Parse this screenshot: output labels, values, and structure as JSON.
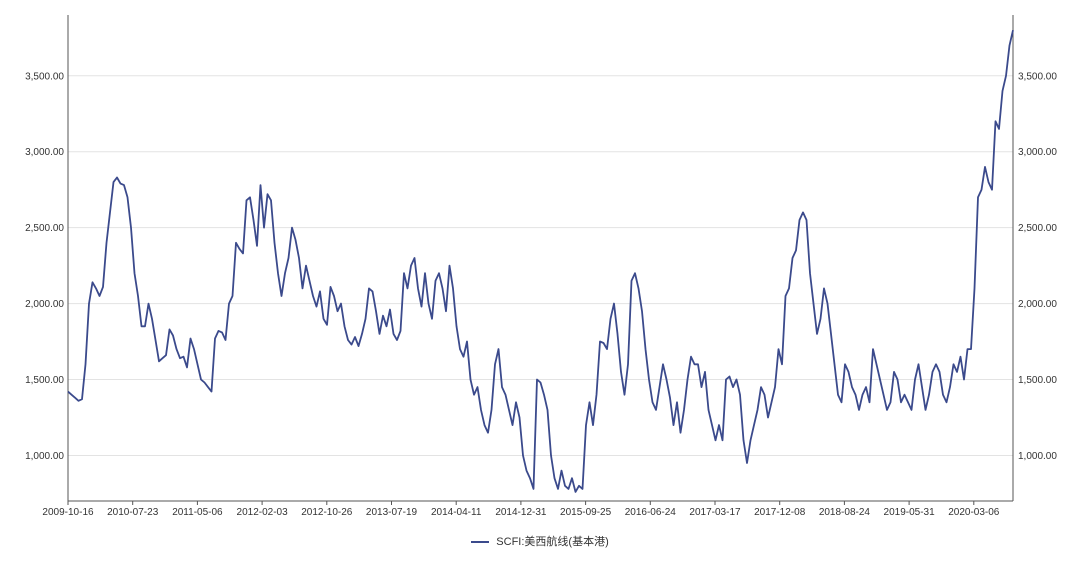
{
  "chart_data": {
    "type": "line",
    "title": "",
    "xlabel": "",
    "ylabel": "",
    "ylim": [
      700,
      3900
    ],
    "grid": true,
    "legend_position": "bottom-center",
    "y_ticks": [
      "1,000.00",
      "1,500.00",
      "2,000.00",
      "2,500.00",
      "3,000.00",
      "3,500.00"
    ],
    "y_tick_values": [
      1000,
      1500,
      2000,
      2500,
      3000,
      3500
    ],
    "x_tick_labels": [
      "2009-10-16",
      "2010-07-23",
      "2011-05-06",
      "2012-02-03",
      "2012-10-26",
      "2013-07-19",
      "2014-04-11",
      "2014-12-31",
      "2015-09-25",
      "2016-06-24",
      "2017-03-17",
      "2017-12-08",
      "2018-08-24",
      "2019-05-31",
      "2020-03-06"
    ],
    "series": [
      {
        "name": "SCFI:美西航线(基本港)",
        "color": "#3b4a8c",
        "values": [
          1420,
          1400,
          1380,
          1360,
          1370,
          1600,
          2000,
          2140,
          2100,
          2050,
          2110,
          2400,
          2600,
          2800,
          2830,
          2790,
          2780,
          2700,
          2500,
          2200,
          2050,
          1850,
          1850,
          2000,
          1900,
          1760,
          1620,
          1640,
          1660,
          1830,
          1790,
          1700,
          1640,
          1650,
          1580,
          1770,
          1700,
          1600,
          1500,
          1480,
          1450,
          1420,
          1770,
          1820,
          1810,
          1760,
          2000,
          2050,
          2400,
          2360,
          2330,
          2680,
          2700,
          2550,
          2380,
          2780,
          2500,
          2720,
          2680,
          2400,
          2200,
          2050,
          2200,
          2300,
          2500,
          2420,
          2300,
          2100,
          2250,
          2150,
          2050,
          1980,
          2080,
          1900,
          1860,
          2110,
          2050,
          1950,
          2000,
          1850,
          1760,
          1730,
          1780,
          1720,
          1800,
          1900,
          2100,
          2080,
          1950,
          1800,
          1920,
          1850,
          1960,
          1800,
          1760,
          1820,
          2200,
          2100,
          2250,
          2300,
          2100,
          1980,
          2200,
          2000,
          1900,
          2150,
          2200,
          2100,
          1950,
          2250,
          2100,
          1850,
          1700,
          1650,
          1750,
          1500,
          1400,
          1450,
          1300,
          1200,
          1150,
          1300,
          1600,
          1700,
          1450,
          1400,
          1300,
          1200,
          1350,
          1250,
          1000,
          900,
          850,
          780,
          1500,
          1480,
          1400,
          1300,
          1000,
          850,
          780,
          900,
          800,
          780,
          850,
          760,
          800,
          780,
          1200,
          1350,
          1200,
          1400,
          1750,
          1740,
          1700,
          1900,
          2000,
          1800,
          1550,
          1400,
          1600,
          2150,
          2200,
          2100,
          1950,
          1700,
          1500,
          1350,
          1300,
          1450,
          1600,
          1500,
          1380,
          1200,
          1350,
          1150,
          1300,
          1500,
          1650,
          1600,
          1600,
          1450,
          1550,
          1300,
          1200,
          1100,
          1200,
          1100,
          1500,
          1520,
          1450,
          1500,
          1400,
          1100,
          950,
          1100,
          1200,
          1300,
          1450,
          1400,
          1250,
          1350,
          1450,
          1700,
          1600,
          2050,
          2100,
          2300,
          2350,
          2550,
          2600,
          2550,
          2200,
          2000,
          1800,
          1900,
          2100,
          2000,
          1800,
          1600,
          1400,
          1350,
          1600,
          1550,
          1450,
          1400,
          1300,
          1400,
          1450,
          1350,
          1700,
          1600,
          1500,
          1400,
          1300,
          1350,
          1550,
          1500,
          1350,
          1400,
          1350,
          1300,
          1500,
          1600,
          1450,
          1300,
          1400,
          1550,
          1600,
          1550,
          1400,
          1350,
          1450,
          1600,
          1550,
          1650,
          1500,
          1700,
          1700,
          2100,
          2700,
          2750,
          2900,
          2800,
          2750,
          3200,
          3150,
          3400,
          3500,
          3700,
          3800
        ]
      }
    ]
  }
}
